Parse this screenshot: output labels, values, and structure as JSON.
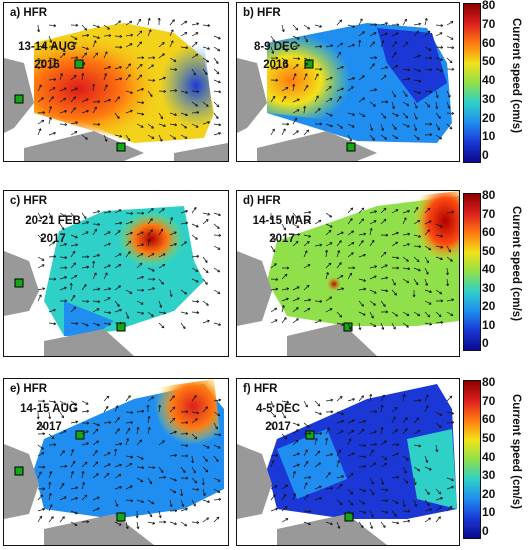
{
  "colorbar": {
    "title": "Current speed (cm/s)",
    "ticks": [
      "80",
      "70",
      "60",
      "50",
      "40",
      "30",
      "20",
      "10",
      "0"
    ],
    "colors": [
      "#8b0000",
      "#dd1f1f",
      "#ff7a10",
      "#f2e21a",
      "#8fe04a",
      "#2fd0c8",
      "#1f8ef0",
      "#1b38d6",
      "#0a0a8c"
    ]
  },
  "panels": [
    {
      "label": "a) HFR",
      "date": [
        "13-14 AUG",
        "2016"
      ]
    },
    {
      "label": "b) HFR",
      "date": [
        "8-9 DEC",
        "2016"
      ]
    },
    {
      "label": "c) HFR",
      "date": [
        "20-21 FEB",
        "2017"
      ]
    },
    {
      "label": "d) HFR",
      "date": [
        "14-15 MAR",
        "2017"
      ]
    },
    {
      "label": "e) HFR",
      "date": [
        "14-15 AUG",
        "2017"
      ]
    },
    {
      "label": "f) HFR",
      "date": [
        "4-5 DEC",
        "2017"
      ]
    }
  ]
}
